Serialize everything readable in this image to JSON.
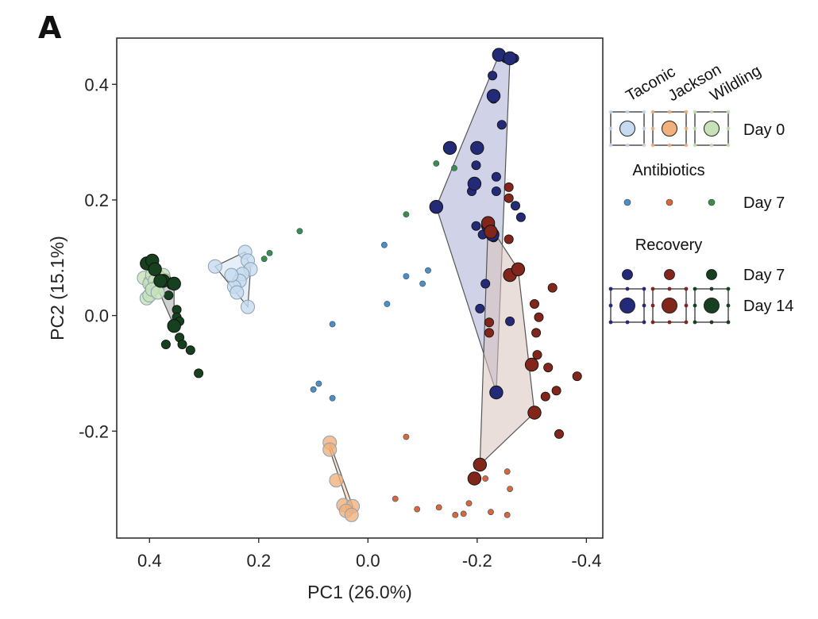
{
  "panel_label": "A",
  "chart_data": {
    "type": "scatter",
    "title": "",
    "xlabel": "PC1 (26.0%)",
    "ylabel": "PC2 (15.1%)",
    "xlim": [
      0.46,
      -0.43
    ],
    "ylim": [
      -0.385,
      0.48
    ],
    "x_reversed": true,
    "xticks": [
      0.4,
      0.2,
      0.0,
      -0.2,
      -0.4
    ],
    "xtick_labels": [
      "0.4",
      "0.2",
      "0.0",
      "-0.2",
      "-0.4"
    ],
    "yticks": [
      -0.2,
      0.0,
      0.2,
      0.4
    ],
    "ytick_labels": [
      "-0.2",
      "0.0",
      "0.2",
      "0.4"
    ],
    "grid": false,
    "legend_position": "right",
    "colors": {
      "taconic_day0": "#c6dbef",
      "jackson_day0": "#f1b07c",
      "wildling_day0": "#c7e2b6",
      "taconic_abx": "#4f8ec3",
      "jackson_abx": "#d9673a",
      "wildling_abx": "#3d8c4a",
      "taconic_rec": "#232b78",
      "jackson_rec": "#82261b",
      "wildling_rec": "#17401e",
      "hull_taconic_day0": "#dde9f6",
      "hull_jackson_day0": "#f6d8bc",
      "hull_wildling_day0": "#d5e8cb",
      "hull_taconic_rec": "#aaaed4",
      "hull_jackson_rec": "#d8c3bb",
      "hull_wildling_rec": "#aaaaaa"
    },
    "legend": {
      "columns": [
        "Taconic",
        "Jackson",
        "Wildling"
      ],
      "rows": [
        {
          "label": "Day 0"
        },
        {
          "group_title": "Antibiotics",
          "label": "Day 7"
        },
        {
          "group_title": "Recovery",
          "label": "Day 7"
        },
        {
          "label": "Day 14"
        }
      ]
    },
    "series": [
      {
        "strain": "Taconic",
        "stage": "Day 0",
        "style": "day0",
        "color_key": "taconic_day0",
        "points": [
          [
            0.28,
            0.085
          ],
          [
            0.225,
            0.11
          ],
          [
            0.22,
            0.095
          ],
          [
            0.215,
            0.08
          ],
          [
            0.23,
            0.072
          ],
          [
            0.235,
            0.06
          ],
          [
            0.245,
            0.05
          ],
          [
            0.24,
            0.04
          ],
          [
            0.22,
            0.015
          ],
          [
            0.25,
            0.07
          ]
        ],
        "hull": [
          [
            0.28,
            0.085
          ],
          [
            0.225,
            0.11
          ],
          [
            0.215,
            0.08
          ],
          [
            0.22,
            0.015
          ]
        ]
      },
      {
        "strain": "Jackson",
        "stage": "Day 0",
        "style": "day0",
        "color_key": "jackson_day0",
        "points": [
          [
            0.07,
            -0.22
          ],
          [
            0.07,
            -0.232
          ],
          [
            0.058,
            -0.285
          ],
          [
            0.045,
            -0.328
          ],
          [
            0.028,
            -0.33
          ],
          [
            0.04,
            -0.338
          ],
          [
            0.03,
            -0.345
          ]
        ],
        "hull": [
          [
            0.07,
            -0.22
          ],
          [
            0.07,
            -0.232
          ],
          [
            0.03,
            -0.345
          ],
          [
            0.028,
            -0.33
          ]
        ]
      },
      {
        "strain": "Wildling",
        "stage": "Day 0",
        "style": "day0",
        "color_key": "wildling_day0",
        "points": [
          [
            0.41,
            0.065
          ],
          [
            0.4,
            0.055
          ],
          [
            0.395,
            0.07
          ],
          [
            0.39,
            0.06
          ],
          [
            0.385,
            0.05
          ],
          [
            0.405,
            0.03
          ],
          [
            0.4,
            0.035
          ],
          [
            0.395,
            0.045
          ],
          [
            0.385,
            0.04
          ],
          [
            0.375,
            0.07
          ]
        ],
        "hull": [
          [
            0.41,
            0.065
          ],
          [
            0.395,
            0.07
          ],
          [
            0.375,
            0.07
          ],
          [
            0.385,
            0.04
          ],
          [
            0.405,
            0.03
          ]
        ]
      },
      {
        "strain": "Taconic",
        "stage": "Antibiotics Day 7",
        "style": "abx",
        "color_key": "taconic_abx",
        "points": [
          [
            -0.03,
            0.122
          ],
          [
            -0.07,
            0.068
          ],
          [
            -0.11,
            0.078
          ],
          [
            -0.1,
            0.055
          ],
          [
            -0.035,
            0.02
          ],
          [
            0.065,
            -0.015
          ],
          [
            0.09,
            -0.118
          ],
          [
            0.1,
            -0.128
          ],
          [
            0.065,
            -0.143
          ]
        ]
      },
      {
        "strain": "Jackson",
        "stage": "Antibiotics Day 7",
        "style": "abx",
        "color_key": "jackson_abx",
        "points": [
          [
            -0.07,
            -0.21
          ],
          [
            -0.05,
            -0.317
          ],
          [
            -0.09,
            -0.335
          ],
          [
            -0.13,
            -0.332
          ],
          [
            -0.16,
            -0.345
          ],
          [
            -0.175,
            -0.343
          ],
          [
            -0.185,
            -0.325
          ],
          [
            -0.215,
            -0.282
          ],
          [
            -0.225,
            -0.34
          ],
          [
            -0.255,
            -0.27
          ],
          [
            -0.26,
            -0.3
          ],
          [
            -0.255,
            -0.345
          ]
        ]
      },
      {
        "strain": "Wildling",
        "stage": "Antibiotics Day 7",
        "style": "abx",
        "color_key": "wildling_abx",
        "points": [
          [
            0.125,
            0.146
          ],
          [
            0.18,
            0.108
          ],
          [
            0.19,
            0.098
          ],
          [
            -0.07,
            0.175
          ],
          [
            -0.125,
            0.263
          ],
          [
            -0.158,
            0.255
          ]
        ]
      },
      {
        "strain": "Taconic",
        "stage": "Recovery Day 7",
        "style": "rec7",
        "color_key": "taconic_rec",
        "points": [
          [
            -0.228,
            0.415
          ],
          [
            -0.252,
            0.445
          ],
          [
            -0.268,
            0.445
          ],
          [
            -0.23,
            0.375
          ],
          [
            -0.245,
            0.33
          ],
          [
            -0.198,
            0.26
          ],
          [
            -0.235,
            0.24
          ],
          [
            -0.19,
            0.215
          ],
          [
            -0.235,
            0.215
          ],
          [
            -0.27,
            0.19
          ],
          [
            -0.28,
            0.17
          ],
          [
            -0.198,
            0.155
          ],
          [
            -0.21,
            0.14
          ],
          [
            -0.23,
            0.135
          ],
          [
            -0.215,
            0.055
          ],
          [
            -0.205,
            0.012
          ],
          [
            -0.26,
            -0.01
          ]
        ]
      },
      {
        "strain": "Jackson",
        "stage": "Recovery Day 7",
        "style": "rec7",
        "color_key": "jackson_rec",
        "points": [
          [
            -0.258,
            0.222
          ],
          [
            -0.258,
            0.203
          ],
          [
            -0.258,
            0.132
          ],
          [
            -0.338,
            0.048
          ],
          [
            -0.305,
            0.02
          ],
          [
            -0.313,
            -0.003
          ],
          [
            -0.308,
            -0.03
          ],
          [
            -0.222,
            -0.03
          ],
          [
            -0.222,
            -0.012
          ],
          [
            -0.31,
            -0.068
          ],
          [
            -0.33,
            -0.09
          ],
          [
            -0.345,
            -0.13
          ],
          [
            -0.383,
            -0.105
          ],
          [
            -0.325,
            -0.14
          ],
          [
            -0.35,
            -0.205
          ]
        ]
      },
      {
        "strain": "Wildling",
        "stage": "Recovery Day 7",
        "style": "rec7",
        "color_key": "wildling_rec",
        "points": [
          [
            0.37,
            0.065
          ],
          [
            0.36,
            0.053
          ],
          [
            0.365,
            0.035
          ],
          [
            0.35,
            0.01
          ],
          [
            0.35,
            -0.003
          ],
          [
            0.345,
            -0.01
          ],
          [
            0.345,
            -0.038
          ],
          [
            0.34,
            -0.05
          ],
          [
            0.325,
            -0.06
          ],
          [
            0.31,
            -0.1
          ],
          [
            0.37,
            -0.05
          ]
        ]
      },
      {
        "strain": "Taconic",
        "stage": "Recovery Day 14",
        "style": "rec14",
        "color_key": "taconic_rec",
        "points": [
          [
            -0.24,
            0.451
          ],
          [
            -0.26,
            0.445
          ],
          [
            -0.23,
            0.38
          ],
          [
            -0.15,
            0.29
          ],
          [
            -0.2,
            0.29
          ],
          [
            -0.195,
            0.228
          ],
          [
            -0.125,
            0.188
          ],
          [
            -0.22,
            0.155
          ],
          [
            -0.228,
            0.14
          ],
          [
            -0.235,
            -0.133
          ]
        ],
        "hull": [
          [
            -0.24,
            0.451
          ],
          [
            -0.26,
            0.445
          ],
          [
            -0.235,
            -0.133
          ],
          [
            -0.125,
            0.188
          ]
        ]
      },
      {
        "strain": "Jackson",
        "stage": "Recovery Day 14",
        "style": "rec14",
        "color_key": "jackson_rec",
        "points": [
          [
            -0.22,
            0.16
          ],
          [
            -0.225,
            0.145
          ],
          [
            -0.26,
            0.07
          ],
          [
            -0.275,
            0.08
          ],
          [
            -0.3,
            -0.085
          ],
          [
            -0.305,
            -0.168
          ],
          [
            -0.205,
            -0.258
          ],
          [
            -0.195,
            -0.282
          ]
        ],
        "hull": [
          [
            -0.22,
            0.16
          ],
          [
            -0.275,
            0.08
          ],
          [
            -0.305,
            -0.168
          ],
          [
            -0.205,
            -0.258
          ]
        ]
      },
      {
        "strain": "Wildling",
        "stage": "Recovery Day 14",
        "style": "rec14",
        "color_key": "wildling_rec",
        "points": [
          [
            0.405,
            0.09
          ],
          [
            0.395,
            0.095
          ],
          [
            0.375,
            0.06
          ],
          [
            0.39,
            0.08
          ],
          [
            0.355,
            0.055
          ],
          [
            0.38,
            0.06
          ],
          [
            0.355,
            -0.018
          ]
        ],
        "hull": [
          [
            0.405,
            0.09
          ],
          [
            0.395,
            0.095
          ],
          [
            0.355,
            0.055
          ],
          [
            0.355,
            -0.018
          ]
        ]
      }
    ]
  }
}
